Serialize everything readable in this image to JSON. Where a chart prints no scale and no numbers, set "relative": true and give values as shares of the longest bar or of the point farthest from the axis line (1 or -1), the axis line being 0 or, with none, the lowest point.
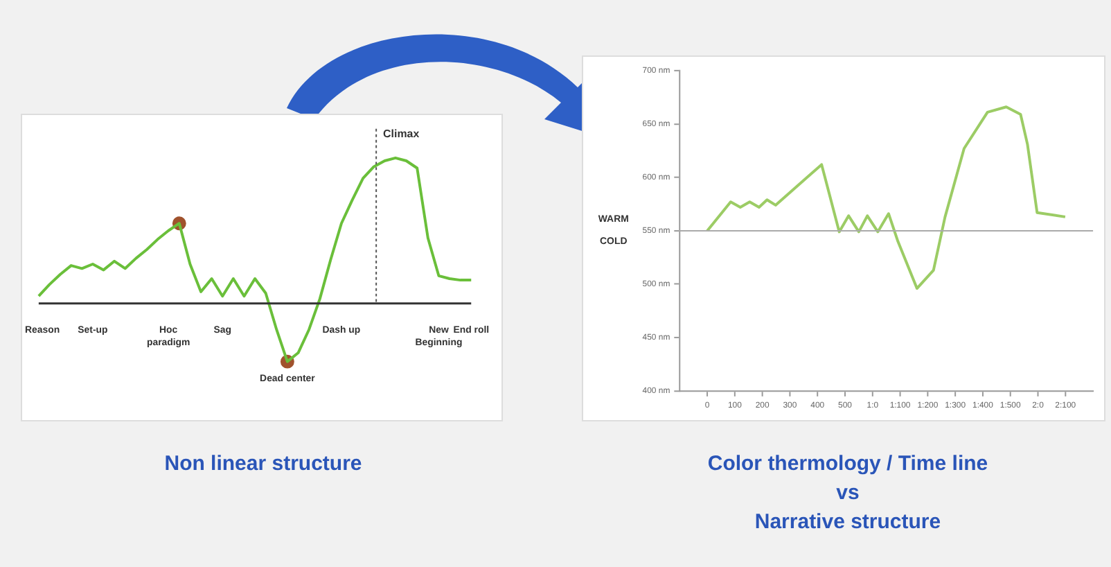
{
  "chart_data": [
    {
      "type": "line",
      "title": "Non linear structure",
      "relative": true,
      "grid": false,
      "legend": false,
      "categories": [
        "Reason",
        null,
        null,
        null,
        null,
        "Set-up",
        null,
        null,
        null,
        null,
        null,
        null,
        "Hoc paradigm",
        null,
        null,
        null,
        null,
        "Sag",
        null,
        null,
        null,
        null,
        null,
        "Dead center",
        null,
        null,
        null,
        null,
        "Dash up",
        null,
        null,
        null,
        null,
        null,
        null,
        null,
        null,
        "New Beginning",
        null,
        null,
        "End roll"
      ],
      "series": [
        {
          "type": "line",
          "color": "#6abf3a",
          "marker": "none",
          "values": [
            0.05,
            0.13,
            0.2,
            0.26,
            0.24,
            0.27,
            0.23,
            0.29,
            0.24,
            0.31,
            0.37,
            0.44,
            0.5,
            0.55,
            0.27,
            0.08,
            0.17,
            0.05,
            0.17,
            0.05,
            0.17,
            0.07,
            -0.18,
            -0.4,
            -0.34,
            -0.18,
            0.03,
            0.3,
            0.55,
            0.71,
            0.86,
            0.94,
            0.98,
            1,
            0.98,
            0.93,
            0.45,
            0.19,
            0.17,
            0.16,
            0.16
          ]
        },
        {
          "type": "scatter",
          "color": "#a0522d",
          "marker": "circle",
          "values": [
            null,
            null,
            null,
            null,
            null,
            null,
            null,
            null,
            null,
            null,
            null,
            null,
            null,
            0.55,
            null,
            null,
            null,
            null,
            null,
            null,
            null,
            null,
            null,
            -0.4,
            null,
            null,
            null,
            null,
            null,
            null,
            null,
            null,
            null,
            null,
            null,
            null,
            null,
            null,
            null,
            null,
            null
          ]
        }
      ],
      "annotations": [
        "Climax"
      ]
    },
    {
      "type": "line",
      "title": "Color thermology / Time line\nvs\nNarrative structure",
      "grid": false,
      "legend": false,
      "xlim": [
        -100,
        1400
      ],
      "xticks": [
        0,
        100,
        200,
        300,
        400,
        500,
        {
          "value": 600,
          "label": "1:0"
        },
        {
          "value": 700,
          "label": "1:100"
        },
        {
          "value": 800,
          "label": "1:200"
        },
        {
          "value": 900,
          "label": "1:300"
        },
        {
          "value": 1000,
          "label": "1:400"
        },
        {
          "value": 1100,
          "label": "1:500"
        },
        {
          "value": 1200,
          "label": "2:0"
        },
        {
          "value": 1300,
          "label": "2:100"
        }
      ],
      "ylim": [
        400,
        700
      ],
      "yticks": [
        {
          "value": 400,
          "label": "400 nm"
        },
        {
          "value": 450,
          "label": "450 nm"
        },
        {
          "value": 500,
          "label": "500 nm"
        },
        {
          "value": 550,
          "label": "550 nm"
        },
        {
          "value": 600,
          "label": "600 nm"
        },
        {
          "value": 650,
          "label": "650 nm"
        },
        {
          "value": 700,
          "label": "700 nm"
        }
      ],
      "series": [
        {
          "type": "line",
          "color": "#9ccc65",
          "marker": "none",
          "x": [
            0,
            85,
            120,
            154,
            188,
            217,
            248,
            415,
            479,
            513,
            550,
            581,
            619,
            658,
            692,
            761,
            821,
            863,
            932,
            1017,
            1085,
            1137,
            1162,
            1197,
            1299
          ],
          "values": [
            550,
            577,
            572,
            577,
            572,
            579,
            574,
            612,
            549,
            564,
            549,
            564,
            549,
            566,
            540,
            496,
            513,
            563,
            627,
            661,
            666,
            659,
            631,
            567,
            563
          ]
        }
      ],
      "ref_lines": [
        {
          "axis": "y",
          "value": 550,
          "color": "#aaaaaa"
        }
      ],
      "annotations": [
        "WARM",
        "COLD"
      ]
    }
  ]
}
